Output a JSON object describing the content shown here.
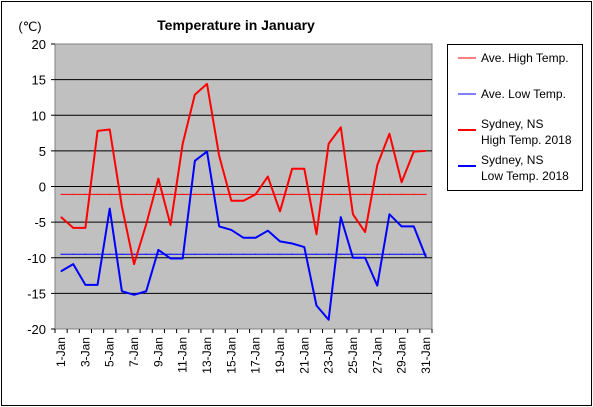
{
  "chart_data": {
    "type": "line",
    "title": "Temperature in January",
    "ylabel": "(℃)",
    "xlabel": "",
    "ylim": [
      -20,
      20
    ],
    "yticks": [
      20,
      15,
      10,
      5,
      0,
      -5,
      -10,
      -15,
      -20
    ],
    "grid": true,
    "legend_position": "right",
    "categories": [
      "1-Jan",
      "2-Jan",
      "3-Jan",
      "4-Jan",
      "5-Jan",
      "6-Jan",
      "7-Jan",
      "8-Jan",
      "9-Jan",
      "10-Jan",
      "11-Jan",
      "12-Jan",
      "13-Jan",
      "14-Jan",
      "15-Jan",
      "16-Jan",
      "17-Jan",
      "18-Jan",
      "19-Jan",
      "20-Jan",
      "21-Jan",
      "22-Jan",
      "23-Jan",
      "24-Jan",
      "25-Jan",
      "26-Jan",
      "27-Jan",
      "28-Jan",
      "29-Jan",
      "30-Jan",
      "31-Jan"
    ],
    "tick_labels": [
      "1-Jan",
      "3-Jan",
      "5-Jan",
      "7-Jan",
      "9-Jan",
      "11-Jan",
      "13-Jan",
      "15-Jan",
      "17-Jan",
      "19-Jan",
      "21-Jan",
      "23-Jan",
      "25-Jan",
      "27-Jan",
      "29-Jan",
      "31-Jan"
    ],
    "series": [
      {
        "name": "Ave. High Temp.",
        "color": "#ff0000",
        "style": "thin",
        "values": [
          -1.1,
          -1.1,
          -1.1,
          -1.1,
          -1.1,
          -1.1,
          -1.1,
          -1.1,
          -1.1,
          -1.1,
          -1.1,
          -1.1,
          -1.1,
          -1.1,
          -1.1,
          -1.1,
          -1.1,
          -1.1,
          -1.1,
          -1.1,
          -1.1,
          -1.1,
          -1.1,
          -1.1,
          -1.1,
          -1.1,
          -1.1,
          -1.1,
          -1.1,
          -1.1,
          -1.1
        ]
      },
      {
        "name": "Ave. Low Temp.",
        "color": "#0000ff",
        "style": "thin",
        "values": [
          -9.5,
          -9.5,
          -9.5,
          -9.5,
          -9.5,
          -9.5,
          -9.5,
          -9.5,
          -9.5,
          -9.5,
          -9.5,
          -9.5,
          -9.5,
          -9.5,
          -9.5,
          -9.5,
          -9.5,
          -9.5,
          -9.5,
          -9.5,
          -9.5,
          -9.5,
          -9.5,
          -9.5,
          -9.5,
          -9.5,
          -9.5,
          -9.5,
          -9.5,
          -9.5,
          -9.5
        ]
      },
      {
        "name": "Sydney, NS High Temp. 2018",
        "name_lines": [
          "Sydney, NS",
          "High Temp. 2018"
        ],
        "color": "#ff0000",
        "style": "thick",
        "values": [
          -4.3,
          -5.8,
          -5.8,
          7.8,
          8.0,
          -2.8,
          -10.9,
          -5.3,
          1.1,
          -5.4,
          6.0,
          12.9,
          14.4,
          4.3,
          -2.0,
          -2.0,
          -1.1,
          1.4,
          -3.5,
          2.5,
          2.5,
          -6.7,
          6.0,
          8.3,
          -3.9,
          -6.4,
          3.0,
          7.4,
          0.6,
          4.9,
          5.0
        ]
      },
      {
        "name": "Sydney, NS Low Temp. 2018",
        "name_lines": [
          "Sydney, NS",
          "Low Temp. 2018"
        ],
        "color": "#0000ff",
        "style": "thick",
        "values": [
          -11.9,
          -10.9,
          -13.8,
          -13.8,
          -3.1,
          -14.7,
          -15.2,
          -14.7,
          -8.9,
          -10.1,
          -10.1,
          3.6,
          4.9,
          -5.6,
          -6.1,
          -7.2,
          -7.2,
          -6.2,
          -7.7,
          -8.0,
          -8.5,
          -16.7,
          -18.7,
          -4.3,
          -10.0,
          -10.0,
          -13.9,
          -3.9,
          -5.6,
          -5.6,
          -9.9
        ]
      }
    ]
  }
}
